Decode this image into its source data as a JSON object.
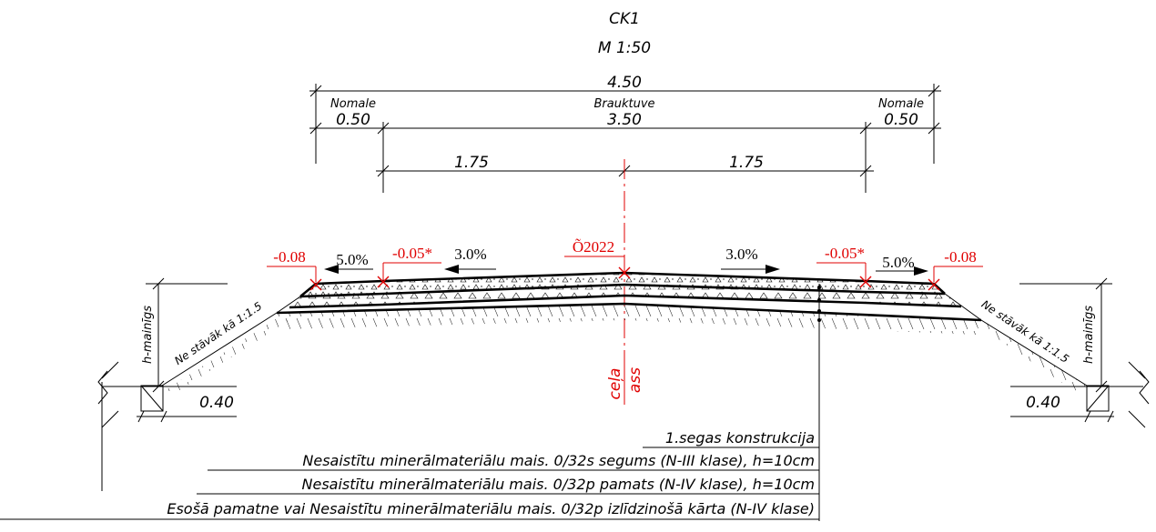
{
  "title": "CK1",
  "scale": "M 1:50",
  "dimensions": {
    "total_width": "4.50",
    "left_shoulder_label": "Nomale",
    "left_shoulder_width": "0.50",
    "carriageway_label": "Brauktuve",
    "carriageway_width": "3.50",
    "right_shoulder_label": "Nomale",
    "right_shoulder_width": "0.50",
    "left_half": "1.75",
    "right_half": "1.75",
    "left_ditch_width": "0.40",
    "right_ditch_width": "0.40"
  },
  "levels": {
    "left_edge": "-0.08",
    "left_carriageway_edge": "-0.05*",
    "axis": "Õ2022",
    "right_carriageway_edge": "-0.05*",
    "right_edge": "-0.08"
  },
  "slopes": {
    "left_shoulder": "5.0%",
    "left_carriageway": "3.0%",
    "right_carriageway": "3.0%",
    "right_shoulder": "5.0%"
  },
  "embankment": {
    "left_slope_text": "Ne stāvāk kā 1:1.5",
    "right_slope_text": "Ne stāvāk kā 1:1.5",
    "left_height_text": "h-mainīgs",
    "right_height_text": "h-mainīgs"
  },
  "axis_label": {
    "word1": "ceļa",
    "word2": "ass"
  },
  "legend": {
    "title": "1.segas konstrukcija",
    "layers": [
      "Nesaistītu minerālmateriālu mais. 0/32s segums (N-III klase), h=10cm",
      "Nesaistītu minerālmateriālu mais. 0/32p pamats (N-IV klase), h=10cm",
      "Esošā pamatne vai Nesaistītu minerālmateriālu mais. 0/32p izlīdzinošā kārta (N-IV klase)"
    ]
  }
}
